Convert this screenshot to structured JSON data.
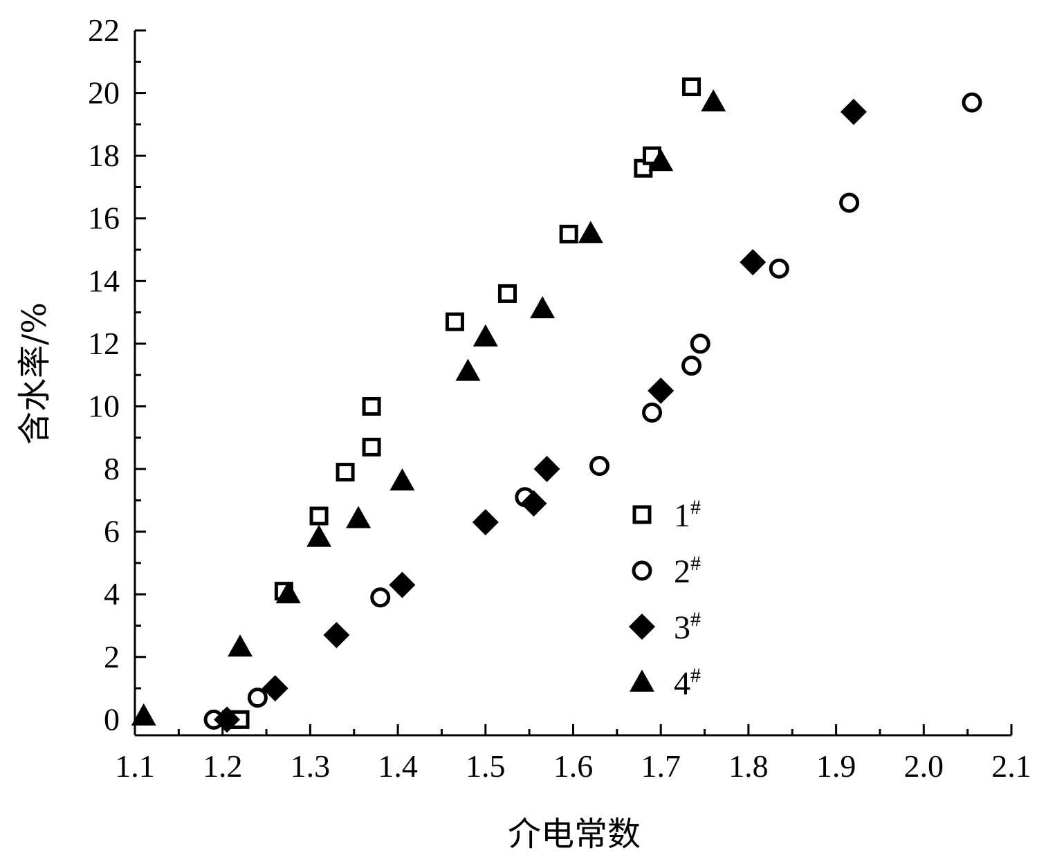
{
  "chart_data": {
    "type": "scatter",
    "title": "",
    "xlabel": "介电常数",
    "ylabel": "含水率/%",
    "xlim": [
      1.1,
      2.1
    ],
    "ylim": [
      -0.5,
      22
    ],
    "x_ticks": [
      "1.1",
      "1.2",
      "1.3",
      "1.4",
      "1.5",
      "1.6",
      "1.7",
      "1.8",
      "1.9",
      "2.0",
      "2.1"
    ],
    "y_ticks": [
      "0",
      "2",
      "4",
      "6",
      "8",
      "10",
      "12",
      "14",
      "16",
      "18",
      "20",
      "22"
    ],
    "grid": false,
    "legend_position": "lower-right",
    "series": [
      {
        "name": "1",
        "superscript": "#",
        "marker": "open-square",
        "color": "#000000",
        "points": [
          [
            1.21,
            0.0
          ],
          [
            1.22,
            0.0
          ],
          [
            1.27,
            4.1
          ],
          [
            1.31,
            6.5
          ],
          [
            1.34,
            7.9
          ],
          [
            1.37,
            8.7
          ],
          [
            1.37,
            10.0
          ],
          [
            1.465,
            12.7
          ],
          [
            1.525,
            13.6
          ],
          [
            1.595,
            15.5
          ],
          [
            1.68,
            17.6
          ],
          [
            1.69,
            18.0
          ],
          [
            1.735,
            20.2
          ]
        ]
      },
      {
        "name": "2",
        "superscript": "#",
        "marker": "open-circle",
        "color": "#000000",
        "points": [
          [
            1.19,
            0.0
          ],
          [
            1.24,
            0.7
          ],
          [
            1.38,
            3.9
          ],
          [
            1.545,
            7.1
          ],
          [
            1.63,
            8.1
          ],
          [
            1.69,
            9.8
          ],
          [
            1.735,
            11.3
          ],
          [
            1.745,
            12.0
          ],
          [
            1.835,
            14.4
          ],
          [
            1.915,
            16.5
          ],
          [
            2.055,
            19.7
          ]
        ]
      },
      {
        "name": "3",
        "superscript": "#",
        "marker": "filled-diamond",
        "color": "#000000",
        "points": [
          [
            1.205,
            0.0
          ],
          [
            1.26,
            1.0
          ],
          [
            1.33,
            2.7
          ],
          [
            1.405,
            4.3
          ],
          [
            1.5,
            6.3
          ],
          [
            1.555,
            6.9
          ],
          [
            1.57,
            8.0
          ],
          [
            1.7,
            10.5
          ],
          [
            1.805,
            14.6
          ],
          [
            1.92,
            19.4
          ]
        ]
      },
      {
        "name": "4",
        "superscript": "#",
        "marker": "filled-triangle",
        "color": "#000000",
        "points": [
          [
            1.11,
            0.1
          ],
          [
            1.22,
            2.3
          ],
          [
            1.275,
            4.0
          ],
          [
            1.31,
            5.8
          ],
          [
            1.355,
            6.4
          ],
          [
            1.405,
            7.6
          ],
          [
            1.48,
            11.1
          ],
          [
            1.5,
            12.2
          ],
          [
            1.565,
            13.1
          ],
          [
            1.62,
            15.5
          ],
          [
            1.7,
            17.8
          ],
          [
            1.76,
            19.7
          ]
        ]
      }
    ]
  }
}
